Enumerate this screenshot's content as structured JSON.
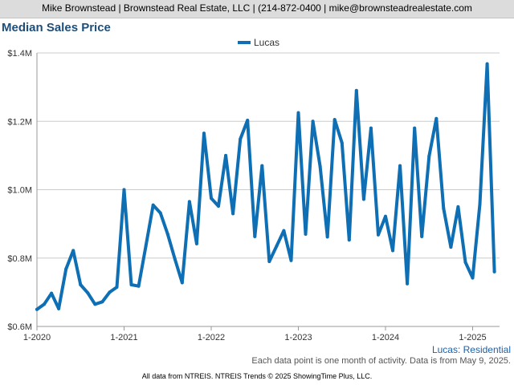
{
  "header": {
    "text": "Mike Brownstead | Brownstead Real Estate, LLC | (214-872-0400 | mike@brownsteadrealestate.com"
  },
  "colors": {
    "header_bg": "#dcdcdc",
    "title": "#1f4e79",
    "series": "#0f6fb4",
    "grid": "#cccccc"
  },
  "chart_data": {
    "type": "line",
    "title": "Median Sales Price",
    "xlabel": "",
    "ylabel": "",
    "ylim": [
      600000,
      1400000
    ],
    "y_ticks": [
      {
        "value": 600000,
        "label": "$0.6M"
      },
      {
        "value": 800000,
        "label": "$0.8M"
      },
      {
        "value": 1000000,
        "label": "$1.0M"
      },
      {
        "value": 1200000,
        "label": "$1.2M"
      },
      {
        "value": 1400000,
        "label": "$1.4M"
      }
    ],
    "x_ticks": [
      "1-2020",
      "1-2021",
      "1-2022",
      "1-2023",
      "1-2024",
      "1-2025"
    ],
    "grid": true,
    "legend_position": "top-center",
    "series": [
      {
        "name": "Lucas",
        "x": [
          "2020-01",
          "2020-02",
          "2020-03",
          "2020-04",
          "2020-05",
          "2020-06",
          "2020-07",
          "2020-08",
          "2020-09",
          "2020-10",
          "2020-11",
          "2020-12",
          "2021-01",
          "2021-02",
          "2021-03",
          "2021-04",
          "2021-05",
          "2021-06",
          "2021-07",
          "2021-08",
          "2021-09",
          "2021-10",
          "2021-11",
          "2021-12",
          "2022-01",
          "2022-02",
          "2022-03",
          "2022-04",
          "2022-05",
          "2022-06",
          "2022-07",
          "2022-08",
          "2022-09",
          "2022-10",
          "2022-11",
          "2022-12",
          "2023-01",
          "2023-02",
          "2023-03",
          "2023-04",
          "2023-05",
          "2023-06",
          "2023-07",
          "2023-08",
          "2023-09",
          "2023-10",
          "2023-11",
          "2023-12",
          "2024-01",
          "2024-02",
          "2024-03",
          "2024-04",
          "2024-05",
          "2024-06",
          "2024-07",
          "2024-08",
          "2024-09",
          "2024-10",
          "2024-11",
          "2024-12",
          "2025-01",
          "2025-02",
          "2025-03",
          "2025-04"
        ],
        "values": [
          650000,
          665000,
          697000,
          652000,
          768000,
          822000,
          722000,
          698000,
          665000,
          672000,
          700000,
          715000,
          1000000,
          722000,
          718000,
          835000,
          955000,
          932000,
          870000,
          797000,
          728000,
          965000,
          842000,
          1165000,
          975000,
          952000,
          1100000,
          930000,
          1148000,
          1203000,
          863000,
          1070000,
          790000,
          835000,
          880000,
          793000,
          1225000,
          870000,
          1200000,
          1068000,
          862000,
          1205000,
          1137000,
          853000,
          1290000,
          972000,
          1180000,
          868000,
          922000,
          822000,
          1070000,
          725000,
          1180000,
          863000,
          1098000,
          1208000,
          945000,
          832000,
          950000,
          788000,
          742000,
          958000,
          1368000,
          760000
        ]
      }
    ]
  },
  "footer": {
    "series_label": "Lucas: Residential",
    "note": "Each data point is one month of activity. Data is from May 9, 2025.",
    "source": "All data from NTREIS. NTREIS Trends © 2025 ShowingTime Plus, LLC."
  }
}
